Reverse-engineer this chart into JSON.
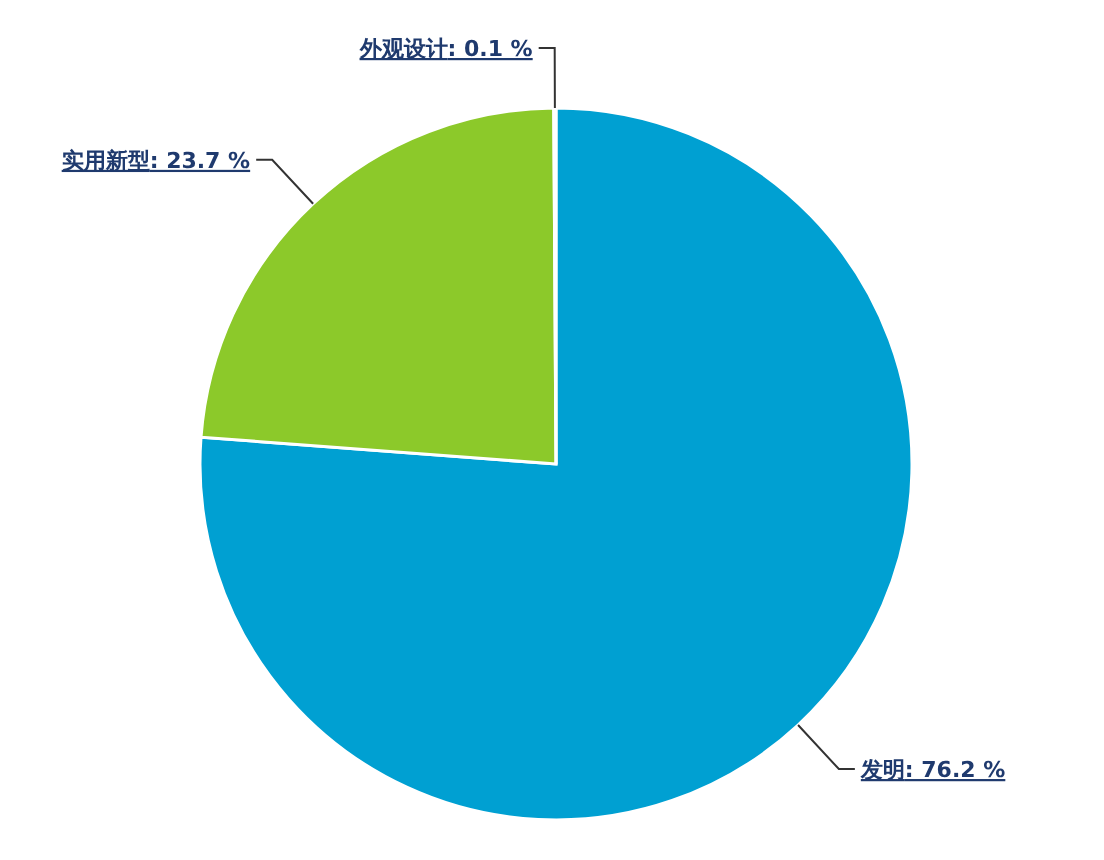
{
  "chart_data": {
    "type": "pie",
    "categories": [
      "发明",
      "实用新型",
      "外观设计"
    ],
    "values": [
      76.2,
      23.7,
      0.1
    ],
    "colors": [
      "#00a0d2",
      "#8cc92a",
      "#f5a623"
    ],
    "value_labels": [
      ": 76.2 %",
      ": 23.7 %",
      ": 0.1 %"
    ]
  }
}
